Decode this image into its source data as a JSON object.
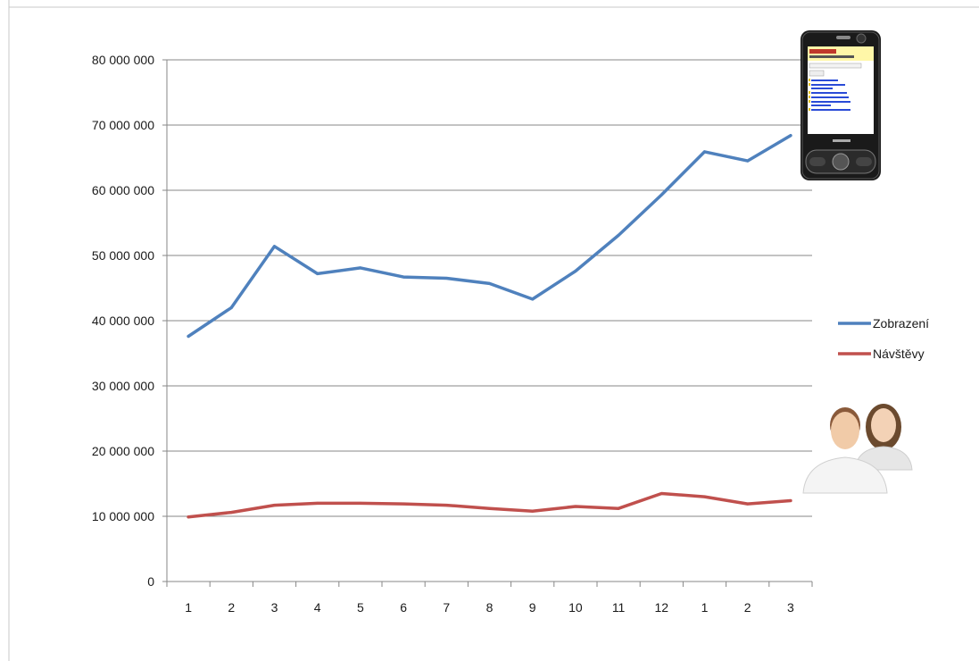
{
  "chart_data": {
    "type": "line",
    "categories": [
      "1",
      "2",
      "3",
      "4",
      "5",
      "6",
      "7",
      "8",
      "9",
      "10",
      "11",
      "12",
      "1",
      "2",
      "3"
    ],
    "y_ticks": [
      "0",
      "10 000 000",
      "20 000 000",
      "30 000 000",
      "40 000 000",
      "50 000 000",
      "60 000 000",
      "70 000 000",
      "80 000 000"
    ],
    "ylim": [
      0,
      80000000
    ],
    "grid": true,
    "legend_position": "right",
    "series": [
      {
        "name": "Zobrazení",
        "color": "#4f81bd",
        "values": [
          37600000,
          42000000,
          51400000,
          47200000,
          48100000,
          46700000,
          46500000,
          45700000,
          43300000,
          47600000,
          53100000,
          59300000,
          65900000,
          64500000,
          68400000
        ]
      },
      {
        "name": "Návštěvy",
        "color": "#c0504d",
        "values": [
          9900000,
          10600000,
          11700000,
          12000000,
          12000000,
          11900000,
          11700000,
          11200000,
          10800000,
          11500000,
          11200000,
          13500000,
          13000000,
          11900000,
          12400000
        ]
      }
    ]
  },
  "decorations": {
    "phone_icon": "mobile-phone-icon",
    "users_icon": "users-icon"
  }
}
